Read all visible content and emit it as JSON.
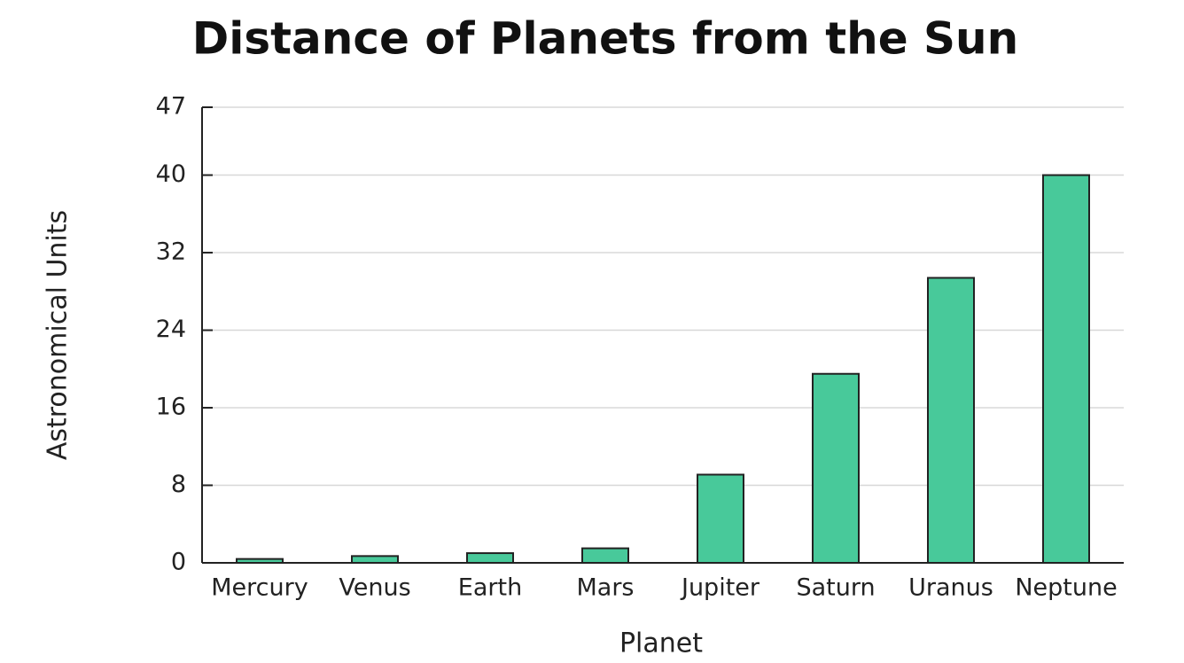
{
  "chart_data": {
    "type": "bar",
    "title": "Distance of Planets from the Sun",
    "x_label": "Planet",
    "y_label": "Astronomical Units",
    "categories": [
      "Mercury",
      "Venus",
      "Earth",
      "Mars",
      "Jupiter",
      "Saturn",
      "Uranus",
      "Neptune"
    ],
    "values": [
      0.4,
      0.7,
      1,
      1.5,
      9.1,
      19.5,
      29.4,
      40
    ],
    "color": "#48c99a",
    "ylim": [
      0,
      47
    ],
    "yticks": [
      0,
      8,
      16,
      24,
      32,
      40,
      47
    ],
    "grid": true
  }
}
